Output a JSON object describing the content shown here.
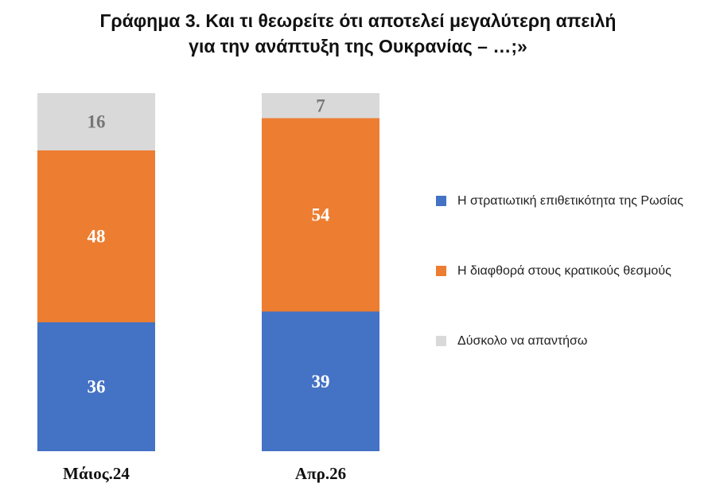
{
  "chart_data": {
    "type": "bar",
    "stacked": true,
    "title_lines": [
      "Γράφημα 3. Και τι θεωρείτε ότι αποτελεί μεγαλύτερη απειλή",
      "για την ανάπτυξη της Ουκρανίας – …;»"
    ],
    "categories": [
      "Μάιος.24",
      "Απρ.26"
    ],
    "series": [
      {
        "name": "Η στρατιωτική επιθετικότητα της Ρωσίας",
        "values": [
          36,
          39
        ],
        "color": "#4472C4"
      },
      {
        "name": "Η διαφθορά στους κρατικούς θεσμούς",
        "values": [
          48,
          54
        ],
        "color": "#ED7D31"
      },
      {
        "name": "Δύσκολο να απαντήσω",
        "values": [
          16,
          7
        ],
        "color": "#D9D9D9"
      }
    ],
    "ylim": [
      0,
      100
    ],
    "legend_position": "right",
    "grid": false,
    "label_colors": {
      "on_dark": "#FFFFFF",
      "on_light": "#767676"
    }
  }
}
